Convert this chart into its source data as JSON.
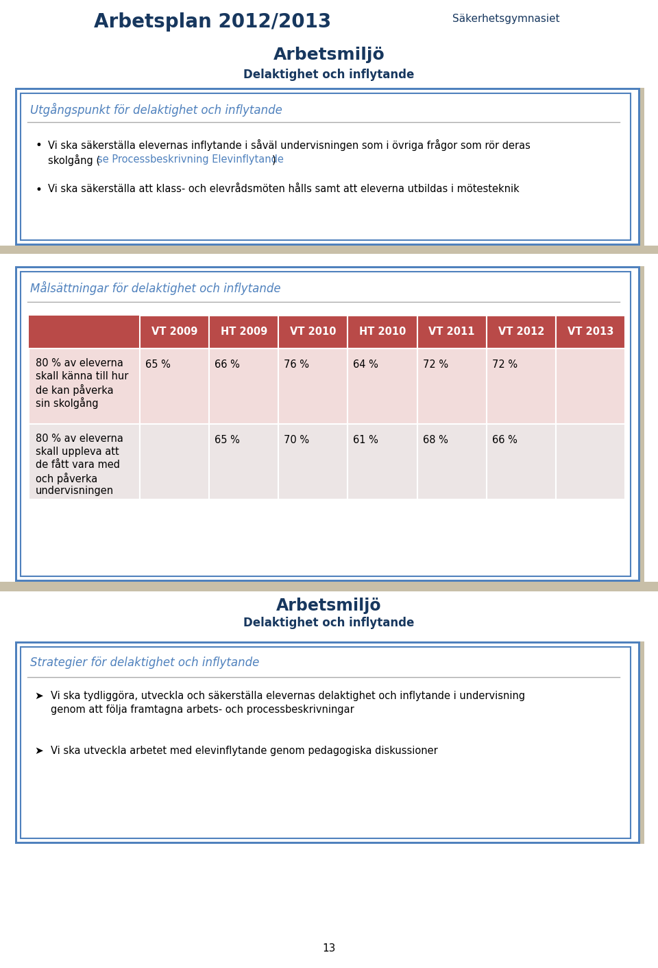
{
  "page_title": "Arbetsplan 2012/2013",
  "page_subtitle": "Säkerhetsgymnasiet",
  "section1_title": "Arbetsmiljö",
  "section1_subtitle": "Delaktighet och inflytande",
  "box1_title": "Utgångspunkt för delaktighet och inflytande",
  "box2_title": "Målsättningar för delaktighet och inflytande",
  "table_headers": [
    "",
    "VT 2009",
    "HT 2009",
    "VT 2010",
    "HT 2010",
    "VT 2011",
    "VT 2012",
    "VT 2013"
  ],
  "table_rows": [
    {
      "label_lines": [
        "80 % av eleverna",
        "skall känna till hur",
        "de kan påverka",
        "sin skolgång"
      ],
      "values": [
        "65 %",
        "66 %",
        "76 %",
        "64 %",
        "72 %",
        "72 %",
        ""
      ]
    },
    {
      "label_lines": [
        "80 % av eleverna",
        "skall uppleva att",
        "de fått vara med",
        "och påverka",
        "undervisningen"
      ],
      "values": [
        "",
        "65 %",
        "70 %",
        "61 %",
        "68 %",
        "66 %",
        ""
      ]
    }
  ],
  "header_bg": "#b94a48",
  "row1_bg": "#f2dcdb",
  "row2_bg": "#ece5e5",
  "section2_title": "Arbetsmiljö",
  "section2_subtitle": "Delaktighet och inflytande",
  "box3_title": "Strategier för delaktighet och inflytande",
  "page_number": "13",
  "outer_border_color": "#4f81bd",
  "inner_border_color": "#4f81bd",
  "section_bg": "#bfb8a0",
  "title_color": "#17375e",
  "box_title_color": "#4f81bd",
  "link_color": "#4f81bd",
  "sandy_strip_color": "#c8bfa8"
}
